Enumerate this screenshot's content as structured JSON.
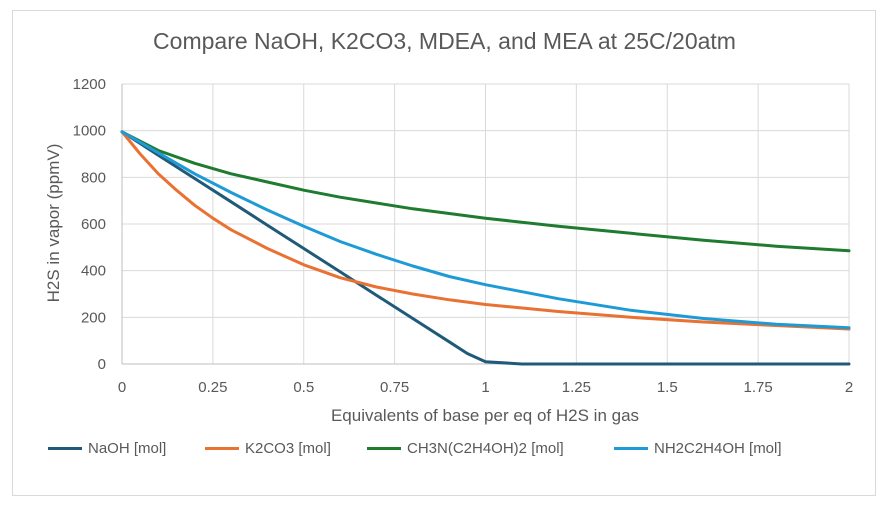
{
  "chart_data": {
    "type": "line",
    "title": "Compare NaOH, K2CO3, MDEA, and MEA at 25C/20atm",
    "xlabel": "Equivalents of base per eq of H2S in gas",
    "ylabel": "H2S in vapor (ppmV)",
    "xlim": [
      0,
      2
    ],
    "ylim": [
      0,
      1200
    ],
    "x_ticks": [
      "0",
      "0.25",
      "0.5",
      "0.75",
      "1",
      "1.25",
      "1.5",
      "1.75",
      "2"
    ],
    "y_ticks": [
      "0",
      "200",
      "400",
      "600",
      "800",
      "1000",
      "1200"
    ],
    "grid": "vertical and horizontal",
    "legend_position": "bottom",
    "series": [
      {
        "name": "NaOH [mol]",
        "color": "#1f5a78",
        "x": [
          0,
          0.1,
          0.2,
          0.3,
          0.4,
          0.5,
          0.6,
          0.7,
          0.8,
          0.9,
          0.95,
          1.0,
          1.1,
          1.2,
          1.4,
          1.6,
          1.8,
          2.0
        ],
        "y": [
          995,
          895,
          795,
          695,
          595,
          495,
          395,
          295,
          195,
          95,
          45,
          10,
          0,
          0,
          0,
          0,
          0,
          0
        ]
      },
      {
        "name": "K2CO3 [mol]",
        "color": "#e97132",
        "x": [
          0,
          0.05,
          0.1,
          0.15,
          0.2,
          0.25,
          0.3,
          0.4,
          0.5,
          0.6,
          0.7,
          0.8,
          0.9,
          1.0,
          1.2,
          1.4,
          1.6,
          1.8,
          2.0
        ],
        "y": [
          995,
          900,
          815,
          745,
          680,
          625,
          575,
          495,
          425,
          370,
          330,
          300,
          275,
          255,
          225,
          200,
          180,
          165,
          150
        ]
      },
      {
        "name": "CH3N(C2H4OH)2 [mol]",
        "color": "#1e7b2f",
        "x": [
          0,
          0.1,
          0.2,
          0.3,
          0.4,
          0.5,
          0.6,
          0.7,
          0.8,
          0.9,
          1.0,
          1.2,
          1.4,
          1.6,
          1.8,
          2.0
        ],
        "y": [
          995,
          915,
          860,
          815,
          780,
          745,
          715,
          690,
          665,
          645,
          625,
          590,
          560,
          530,
          505,
          485
        ]
      },
      {
        "name": "NH2C2H4OH [mol]",
        "color": "#1e9ad6",
        "x": [
          0,
          0.1,
          0.2,
          0.3,
          0.4,
          0.5,
          0.6,
          0.7,
          0.8,
          0.9,
          1.0,
          1.2,
          1.4,
          1.6,
          1.8,
          2.0
        ],
        "y": [
          995,
          905,
          815,
          735,
          660,
          590,
          525,
          470,
          420,
          375,
          340,
          280,
          230,
          195,
          170,
          155
        ]
      }
    ]
  }
}
